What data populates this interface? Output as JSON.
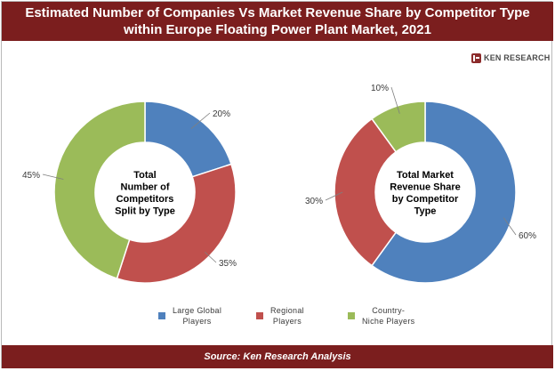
{
  "header": {
    "title": "Estimated Number of Companies Vs Market Revenue Share by Competitor Type within Europe Floating Power Plant Market, 2021"
  },
  "logo": {
    "text": "KEN RESEARCH"
  },
  "colors": {
    "large_global": "#4f81bd",
    "regional": "#c0504d",
    "country_niche": "#9bbb59",
    "brand": "#7b1e1e"
  },
  "chart_data": [
    {
      "type": "pie",
      "variant": "donut",
      "center_label": [
        "Total",
        "Number of",
        "Competitors",
        "Split by Type"
      ],
      "categories": [
        "Large Global Players",
        "Regional Players",
        "Country-Niche Players"
      ],
      "values": [
        20,
        35,
        45
      ],
      "data_labels": [
        "20%",
        "35%",
        "45%"
      ]
    },
    {
      "type": "pie",
      "variant": "donut",
      "center_label": [
        "Total Market",
        "Revenue Share",
        "by Competitor",
        "Type"
      ],
      "categories": [
        "Large Global Players",
        "Regional Players",
        "Country-Niche Players"
      ],
      "values": [
        60,
        30,
        10
      ],
      "data_labels": [
        "60%",
        "30%",
        "10%"
      ]
    }
  ],
  "legend": {
    "items": [
      {
        "lines": [
          "Large Global",
          "Players"
        ],
        "color": "#4f81bd"
      },
      {
        "lines": [
          "Regional",
          "Players"
        ],
        "color": "#c0504d"
      },
      {
        "lines": [
          "Country-",
          "Niche Players"
        ],
        "color": "#9bbb59"
      }
    ]
  },
  "footer": {
    "source": "Source: Ken Research Analysis"
  }
}
